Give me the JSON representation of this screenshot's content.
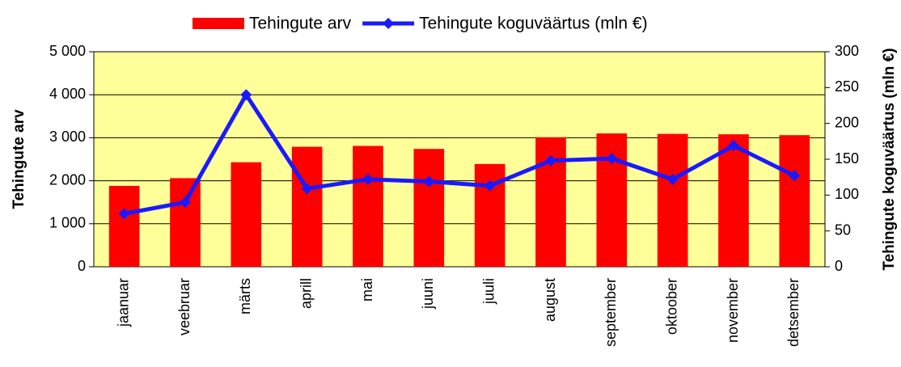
{
  "chart_data": {
    "type": "bar_line",
    "y_label": "Tehingute arv",
    "y2_label": "Tehingute koguväärtus (mln €)",
    "categories": [
      "jaanuar",
      "veebruar",
      "märts",
      "aprill",
      "mai",
      "juuni",
      "juuli",
      "august",
      "september",
      "oktoober",
      "november",
      "detsember"
    ],
    "series": [
      {
        "name": "Tehingute arv",
        "color": "#ff0000",
        "kind": "bar",
        "values": [
          1880,
          2060,
          2430,
          2790,
          2810,
          2740,
          2390,
          3010,
          3100,
          3090,
          3080,
          3060
        ]
      },
      {
        "name": "Tehingute koguväärtus (mln €)",
        "color": "#1a1aff",
        "kind": "line",
        "axis": "y2",
        "values": [
          74,
          90,
          240,
          109,
          122,
          119,
          113,
          148,
          151,
          122,
          169,
          127
        ]
      }
    ],
    "ylim": [
      0,
      5000
    ],
    "yticks": [
      0,
      {
        "value": 1000,
        "label": "1 000"
      },
      {
        "value": 2000,
        "label": "2 000"
      },
      {
        "value": 3000,
        "label": "3 000"
      },
      {
        "value": 4000,
        "label": "4 000"
      },
      {
        "value": 5000,
        "label": "5 000"
      }
    ],
    "y2lim": [
      0,
      300
    ],
    "y2ticks": [
      0,
      50,
      100,
      150,
      200,
      250,
      300
    ],
    "grid": true,
    "plot_background": "#ffff99"
  }
}
